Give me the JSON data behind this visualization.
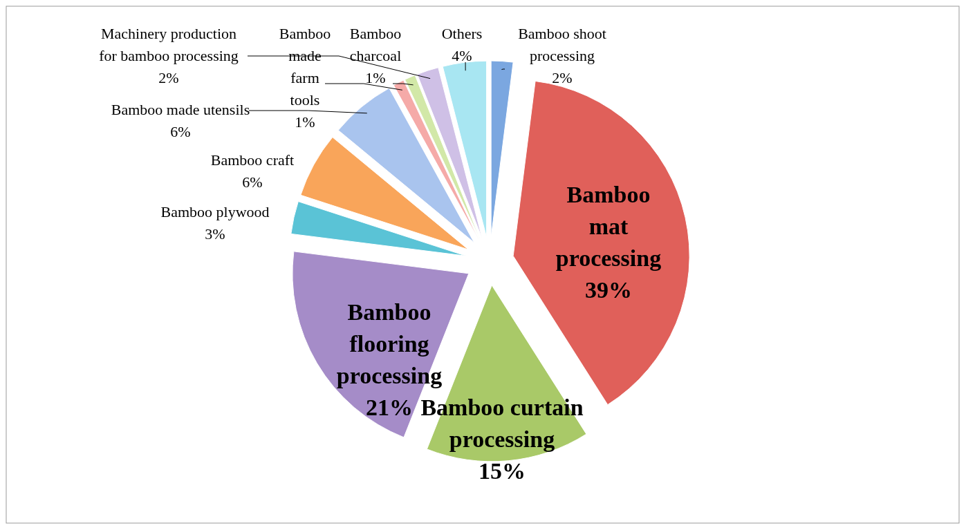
{
  "chart_data": {
    "type": "pie",
    "categories": [
      "Bamboo shoot processing",
      "Bamboo mat processing",
      "Bamboo curtain processing",
      "Bamboo flooring processing",
      "Bamboo plywood",
      "Bamboo craft",
      "Bamboo made utensils",
      "Bamboo made farm tools",
      "Bamboo charcoal",
      "Machinery production for bamboo processing",
      "Others"
    ],
    "values": [
      2,
      39,
      15,
      21,
      3,
      6,
      6,
      1,
      1,
      2,
      4
    ],
    "value_labels": [
      "2%",
      "39%",
      "15%",
      "21%",
      "3%",
      "6%",
      "6%",
      "1%",
      "1%",
      "2%",
      "4%"
    ],
    "colors": [
      "#7ba7e0",
      "#e0605a",
      "#a9c968",
      "#a58cc8",
      "#5ac3d6",
      "#f9a55a",
      "#a9c4ee",
      "#f5aaa8",
      "#d2e8a8",
      "#cfc0e6",
      "#a8e6f2"
    ]
  }
}
